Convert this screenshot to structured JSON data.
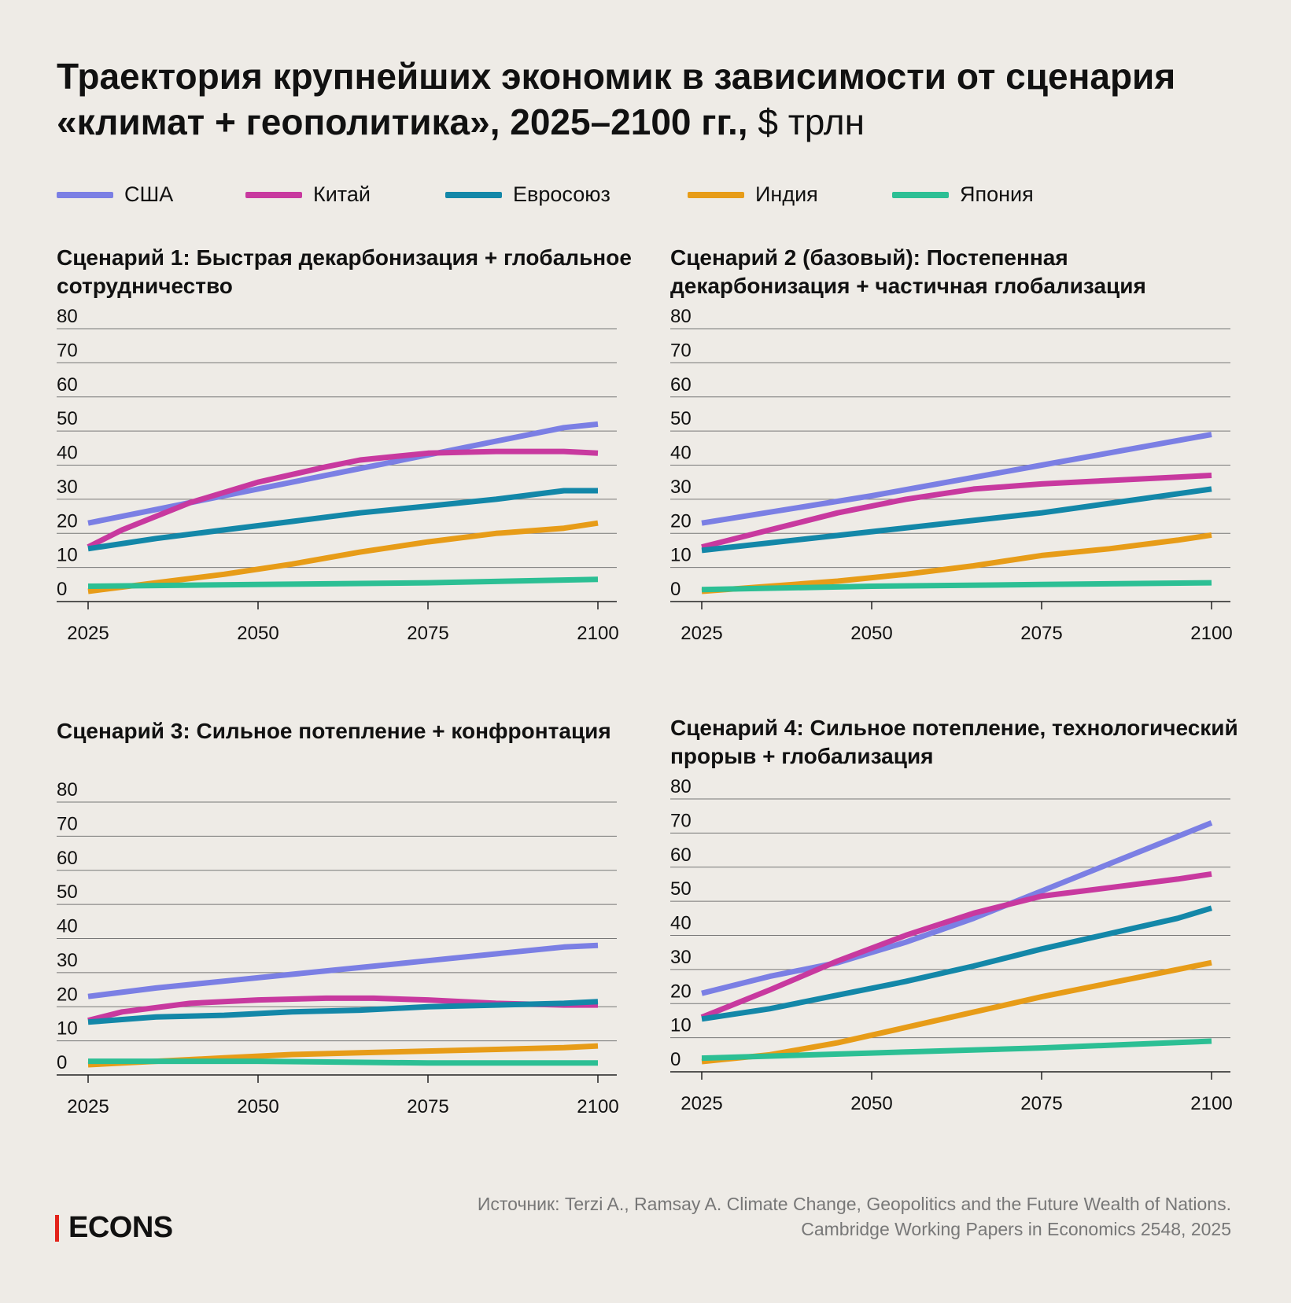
{
  "title": {
    "main": "Траектория крупнейших экономик в зависимости от сценария «климат + геополитика», 2025–2100 гг.,",
    "unit": " $ трлн"
  },
  "legend": [
    {
      "label": "США",
      "color": "#7b7fe4"
    },
    {
      "label": "Китай",
      "color": "#c8399f"
    },
    {
      "label": "Евросоюз",
      "color": "#1387a8"
    },
    {
      "label": "Индия",
      "color": "#e79c18"
    },
    {
      "label": "Япония",
      "color": "#2cbf94"
    }
  ],
  "chart_data": [
    {
      "type": "line",
      "title": "Сценарий 1: Быстрая декарбонизация + глобальное сотрудничество",
      "xlim": [
        2025,
        2100
      ],
      "ylim": [
        0,
        80
      ],
      "xticks": [
        2025,
        2050,
        2075,
        2100
      ],
      "yticks": [
        0,
        10,
        20,
        30,
        40,
        50,
        60,
        70,
        80
      ],
      "grid": true,
      "series": [
        {
          "name": "США",
          "x": [
            2025,
            2035,
            2045,
            2055,
            2065,
            2075,
            2085,
            2095,
            2100
          ],
          "y": [
            23,
            27,
            31,
            35,
            39,
            43,
            47,
            51,
            52
          ]
        },
        {
          "name": "Китай",
          "x": [
            2025,
            2030,
            2040,
            2050,
            2060,
            2065,
            2075,
            2085,
            2095,
            2100
          ],
          "y": [
            16,
            21,
            29,
            35,
            39.5,
            41.5,
            43.5,
            44,
            44,
            43.5
          ]
        },
        {
          "name": "Евросоюз",
          "x": [
            2025,
            2035,
            2045,
            2055,
            2065,
            2075,
            2085,
            2095,
            2100
          ],
          "y": [
            15.5,
            18.5,
            21,
            23.5,
            26,
            28,
            30,
            32.5,
            32.5
          ]
        },
        {
          "name": "Индия",
          "x": [
            2025,
            2035,
            2045,
            2055,
            2065,
            2075,
            2085,
            2095,
            2100
          ],
          "y": [
            3,
            5.5,
            8,
            11,
            14.5,
            17.5,
            20,
            21.5,
            23
          ]
        },
        {
          "name": "Япония",
          "x": [
            2025,
            2050,
            2075,
            2100
          ],
          "y": [
            4.5,
            5,
            5.5,
            6.5
          ]
        }
      ]
    },
    {
      "type": "line",
      "title": "Сценарий 2 (базовый): Постепенная декарбонизация + частичная глобализация",
      "xlim": [
        2025,
        2100
      ],
      "ylim": [
        0,
        80
      ],
      "xticks": [
        2025,
        2050,
        2075,
        2100
      ],
      "yticks": [
        0,
        10,
        20,
        30,
        40,
        50,
        60,
        70,
        80
      ],
      "grid": true,
      "series": [
        {
          "name": "США",
          "x": [
            2025,
            2050,
            2075,
            2100
          ],
          "y": [
            23,
            31,
            40,
            49
          ]
        },
        {
          "name": "Китай",
          "x": [
            2025,
            2035,
            2045,
            2055,
            2065,
            2075,
            2085,
            2095,
            2100
          ],
          "y": [
            16,
            21,
            26,
            30,
            33,
            34.5,
            35.5,
            36.5,
            37
          ]
        },
        {
          "name": "Евросоюз",
          "x": [
            2025,
            2050,
            2075,
            2100
          ],
          "y": [
            15,
            20.5,
            26,
            33
          ]
        },
        {
          "name": "Индия",
          "x": [
            2025,
            2035,
            2045,
            2055,
            2065,
            2075,
            2085,
            2095,
            2100
          ],
          "y": [
            3,
            4.5,
            6,
            8,
            10.5,
            13.5,
            15.5,
            18,
            19.5
          ]
        },
        {
          "name": "Япония",
          "x": [
            2025,
            2050,
            2075,
            2100
          ],
          "y": [
            3.5,
            4.5,
            5,
            5.5
          ]
        }
      ]
    },
    {
      "type": "line",
      "title": "Сценарий 3: Сильное потепление + конфронтация",
      "xlim": [
        2025,
        2100
      ],
      "ylim": [
        0,
        80
      ],
      "xticks": [
        2025,
        2050,
        2075,
        2100
      ],
      "yticks": [
        0,
        10,
        20,
        30,
        40,
        50,
        60,
        70,
        80
      ],
      "grid": true,
      "series": [
        {
          "name": "США",
          "x": [
            2025,
            2035,
            2045,
            2055,
            2065,
            2075,
            2085,
            2095,
            2100
          ],
          "y": [
            23,
            25.5,
            27.5,
            29.5,
            31.5,
            33.5,
            35.5,
            37.5,
            38
          ]
        },
        {
          "name": "Китай",
          "x": [
            2025,
            2030,
            2040,
            2050,
            2060,
            2067,
            2075,
            2085,
            2095,
            2100
          ],
          "y": [
            16,
            18.5,
            21,
            22,
            22.5,
            22.5,
            22,
            21,
            20.5,
            20.5
          ]
        },
        {
          "name": "Евросоюз",
          "x": [
            2025,
            2035,
            2045,
            2055,
            2065,
            2075,
            2085,
            2095,
            2100
          ],
          "y": [
            15.5,
            17,
            17.5,
            18.5,
            19,
            20,
            20.5,
            21,
            21.5
          ]
        },
        {
          "name": "Индия",
          "x": [
            2025,
            2035,
            2045,
            2055,
            2065,
            2075,
            2085,
            2095,
            2100
          ],
          "y": [
            3,
            4,
            5,
            6,
            6.5,
            7,
            7.5,
            8,
            8.5
          ]
        },
        {
          "name": "Япония",
          "x": [
            2025,
            2050,
            2075,
            2100
          ],
          "y": [
            4,
            4,
            3.5,
            3.5
          ]
        }
      ]
    },
    {
      "type": "line",
      "title": "Сценарий 4: Сильное потепление, технологический прорыв + глобализация",
      "xlim": [
        2025,
        2100
      ],
      "ylim": [
        0,
        80
      ],
      "xticks": [
        2025,
        2050,
        2075,
        2100
      ],
      "yticks": [
        0,
        10,
        20,
        30,
        40,
        50,
        60,
        70,
        80
      ],
      "grid": true,
      "series": [
        {
          "name": "США",
          "x": [
            2025,
            2035,
            2045,
            2055,
            2065,
            2075,
            2085,
            2095,
            2100
          ],
          "y": [
            23,
            28,
            32,
            38,
            45,
            53,
            61,
            69,
            73
          ]
        },
        {
          "name": "Китай",
          "x": [
            2025,
            2035,
            2045,
            2055,
            2065,
            2075,
            2085,
            2095,
            2100
          ],
          "y": [
            16,
            24,
            32.5,
            40,
            46.5,
            51.5,
            54,
            56.5,
            58
          ]
        },
        {
          "name": "Евросоюз",
          "x": [
            2025,
            2035,
            2045,
            2055,
            2065,
            2075,
            2085,
            2095,
            2100
          ],
          "y": [
            15.5,
            18.5,
            22.5,
            26.5,
            31,
            36,
            40.5,
            45,
            48
          ]
        },
        {
          "name": "Индия",
          "x": [
            2025,
            2035,
            2045,
            2055,
            2065,
            2075,
            2085,
            2095,
            2100
          ],
          "y": [
            3,
            5,
            8.5,
            13,
            17.5,
            22,
            26,
            30,
            32
          ]
        },
        {
          "name": "Япония",
          "x": [
            2025,
            2050,
            2075,
            2100
          ],
          "y": [
            4,
            5.5,
            7,
            9
          ]
        }
      ]
    }
  ],
  "footer": {
    "logo": "ECONS",
    "source_line1": "Источник: Terzi A., Ramsay A. Climate Change, Geopolitics and the Future Wealth of Nations.",
    "source_line2": "Cambridge Working Papers in Economics 2548, 2025"
  }
}
